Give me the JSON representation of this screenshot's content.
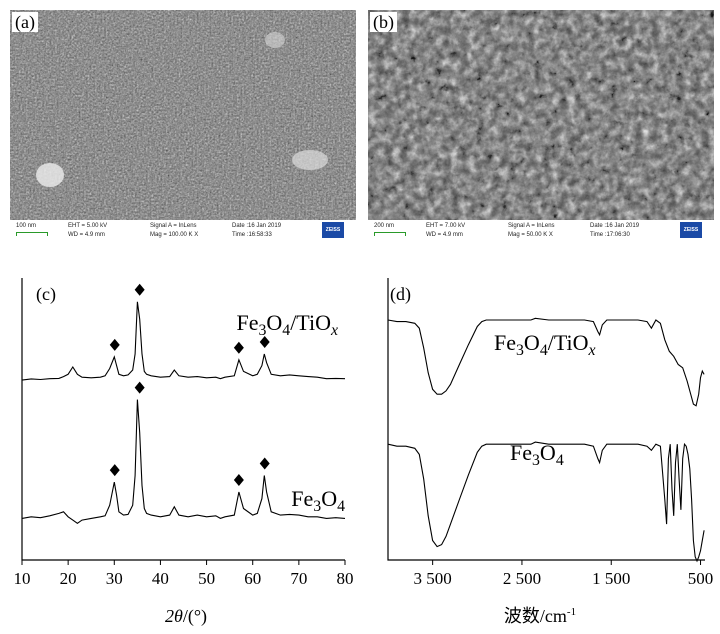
{
  "panels": {
    "a": {
      "label": "(a)",
      "info": {
        "scale": "100 nm",
        "eht": "EHT = 5.00 kV",
        "wd": "WD = 4.9 mm",
        "signal": "Signal A = InLens",
        "mag": "Mag = 100.00 K X",
        "date": "Date :16 Jan 2019",
        "time": "Time :16:58:33",
        "logo": "ZEISS"
      }
    },
    "b": {
      "label": "(b)",
      "info": {
        "scale": "200 nm",
        "eht": "EHT = 7.00 kV",
        "wd": "WD = 4.9 mm",
        "signal": "Signal A = InLens",
        "mag": "Mag = 50.00 K X",
        "date": "Date :16 Jan 2019",
        "time": "Time :17:06:30",
        "logo": "ZEISS"
      }
    },
    "c": {
      "label": "(c)"
    },
    "d": {
      "label": "(d)"
    }
  },
  "colors": {
    "line": "#000000",
    "sem_bg": "#5b5b5b",
    "zeiss_blue": "#1b4aa6",
    "scale_green": "#2a9a2a"
  },
  "chart_data": [
    {
      "type": "line",
      "panel": "(c)",
      "xlabel": "2θ/(°)",
      "xlim": [
        10,
        80
      ],
      "x_ticks": [
        10,
        20,
        30,
        40,
        50,
        60,
        70,
        80
      ],
      "marker": "diamond",
      "series": [
        {
          "name": "Fe3O4/TiOx",
          "x": [
            10,
            12,
            14,
            16,
            18,
            19,
            20,
            21,
            22,
            23,
            25,
            27,
            28,
            29,
            30,
            30.5,
            31,
            32,
            33,
            34,
            34.5,
            35,
            35.5,
            36,
            36.5,
            37,
            38,
            40,
            42,
            43,
            44,
            46,
            48,
            50,
            52,
            53,
            54,
            56,
            57,
            58,
            60,
            61,
            62,
            62.5,
            63,
            64,
            66,
            68,
            70,
            72,
            74,
            76,
            78,
            80
          ],
          "y": [
            1,
            1.4,
            1.2,
            1.5,
            1.6,
            2.2,
            3,
            5.5,
            3,
            2,
            1.8,
            2,
            2.5,
            5,
            9,
            6,
            3,
            2.5,
            2.8,
            4.5,
            10,
            28,
            22,
            10,
            4,
            3,
            2.5,
            2,
            2.2,
            4.5,
            2.5,
            2,
            2.2,
            1.8,
            2,
            1.5,
            2,
            2.5,
            8,
            4,
            2.5,
            3,
            6,
            10,
            7,
            3,
            2.5,
            2.8,
            2.5,
            2.2,
            2,
            1.5,
            1.6,
            1.5
          ]
        },
        {
          "name": "Fe3O4",
          "x": [
            10,
            12,
            14,
            16,
            18,
            19,
            20,
            21,
            22,
            23,
            25,
            27,
            28,
            29,
            30,
            30.5,
            31,
            32,
            33,
            34,
            34.5,
            35,
            35.5,
            36,
            36.5,
            37,
            38,
            40,
            42,
            43,
            44,
            46,
            48,
            50,
            52,
            53,
            54,
            56,
            57,
            58,
            60,
            61,
            62,
            62.5,
            63,
            64,
            66,
            68,
            70,
            72,
            74,
            76,
            78,
            80
          ],
          "y": [
            2,
            2.5,
            2.2,
            2.8,
            3.5,
            4,
            2.5,
            1.5,
            0.5,
            1.5,
            2,
            2.5,
            2.8,
            6,
            13,
            9,
            4,
            3,
            3.2,
            6,
            15,
            38,
            28,
            12,
            5,
            3.5,
            3,
            2.5,
            3,
            5.5,
            3,
            2.5,
            3,
            2.5,
            2.8,
            2,
            2.5,
            3,
            10,
            5,
            3,
            3.5,
            8,
            15,
            10,
            4,
            3,
            3.2,
            3,
            2.5,
            2.5,
            2,
            2.2,
            2
          ]
        }
      ],
      "peaks": [
        30.1,
        35.5,
        57.0,
        62.6
      ],
      "labels": [
        {
          "text": "Fe3O4/TiOx",
          "series": 0
        },
        {
          "text": "Fe3O4",
          "series": 1
        }
      ]
    },
    {
      "type": "line",
      "panel": "(d)",
      "xlabel": "波数/cm-1",
      "xlim": [
        4000,
        450
      ],
      "x_ticks": [
        3500,
        2500,
        1500,
        500
      ],
      "x_tick_labels": [
        "3 500",
        "2 500",
        "1 500",
        "500"
      ],
      "series": [
        {
          "name": "Fe3O4/TiOx",
          "x": [
            4000,
            3900,
            3800,
            3700,
            3650,
            3600,
            3550,
            3500,
            3450,
            3400,
            3350,
            3300,
            3200,
            3100,
            3000,
            2950,
            2900,
            2800,
            2600,
            2400,
            2350,
            2200,
            2000,
            1800,
            1700,
            1650,
            1630,
            1600,
            1550,
            1500,
            1400,
            1200,
            1100,
            1050,
            1000,
            950,
            900,
            850,
            800,
            750,
            700,
            650,
            600,
            580,
            550,
            520,
            500,
            480,
            460
          ],
          "y": [
            97,
            96,
            96,
            95,
            92,
            80,
            65,
            55,
            52,
            52,
            54,
            58,
            70,
            82,
            93,
            96,
            97,
            97,
            97,
            97,
            98,
            97,
            97,
            97,
            96,
            90,
            88,
            94,
            97,
            97,
            97,
            97,
            96,
            92,
            97,
            95,
            85,
            78,
            75,
            70,
            68,
            60,
            50,
            46,
            45,
            52,
            62,
            66,
            64
          ]
        },
        {
          "name": "Fe3O4",
          "x": [
            4000,
            3900,
            3800,
            3700,
            3650,
            3600,
            3550,
            3500,
            3450,
            3400,
            3350,
            3300,
            3200,
            3100,
            3000,
            2950,
            2900,
            2800,
            2600,
            2400,
            2350,
            2200,
            2000,
            1800,
            1700,
            1650,
            1630,
            1600,
            1550,
            1500,
            1400,
            1200,
            1100,
            1050,
            1000,
            950,
            900,
            880,
            860,
            840,
            820,
            800,
            780,
            760,
            740,
            720,
            700,
            680,
            660,
            640,
            620,
            600,
            580,
            560,
            540,
            520,
            500,
            480,
            460
          ],
          "y": [
            97,
            96,
            96,
            95,
            92,
            80,
            62,
            50,
            47,
            48,
            52,
            58,
            70,
            82,
            93,
            96,
            97,
            97,
            97,
            97,
            98,
            97,
            97,
            97,
            96,
            90,
            88,
            94,
            97,
            97,
            97,
            97,
            96,
            94,
            97,
            96,
            70,
            58,
            90,
            97,
            75,
            62,
            88,
            97,
            80,
            65,
            90,
            97,
            96,
            92,
            85,
            70,
            50,
            42,
            40,
            42,
            45,
            50,
            55
          ]
        }
      ],
      "labels": [
        {
          "text": "Fe3O4/TiOx",
          "series": 0
        },
        {
          "text": "Fe3O4",
          "series": 1
        }
      ]
    }
  ]
}
